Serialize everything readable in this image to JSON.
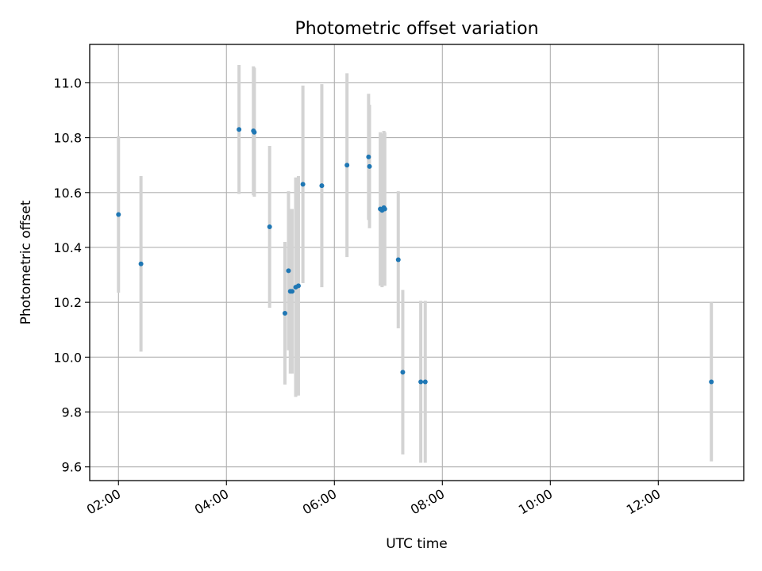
{
  "chart_data": {
    "type": "scatter",
    "title": "Photometric offset variation",
    "xlabel": "UTC time",
    "ylabel": "Photometric offset",
    "x_ticks": [
      "02:00",
      "04:00",
      "06:00",
      "08:00",
      "10:00",
      "12:00"
    ],
    "y_ticks": [
      "9.6",
      "9.8",
      "10.0",
      "10.2",
      "10.4",
      "10.6",
      "10.8",
      "11.0"
    ],
    "xlim": [
      "01:28",
      "13:35"
    ],
    "ylim": [
      9.55,
      11.14
    ],
    "grid": true,
    "point_color": "#1f77b4",
    "errorbar_color": "#d3d3d3",
    "points": [
      {
        "time": "02:00",
        "value": 10.52,
        "error": 0.285
      },
      {
        "time": "02:25",
        "value": 10.34,
        "error": 0.32
      },
      {
        "time": "04:14",
        "value": 10.83,
        "error": 0.235
      },
      {
        "time": "04:30",
        "value": 10.825,
        "error": 0.235
      },
      {
        "time": "04:31",
        "value": 10.82,
        "error": 0.235
      },
      {
        "time": "04:48",
        "value": 10.475,
        "error": 0.295
      },
      {
        "time": "05:05",
        "value": 10.16,
        "error": 0.26
      },
      {
        "time": "05:09",
        "value": 10.315,
        "error": 0.29
      },
      {
        "time": "05:11",
        "value": 10.24,
        "error": 0.3
      },
      {
        "time": "05:13",
        "value": 10.24,
        "error": 0.3
      },
      {
        "time": "05:17",
        "value": 10.255,
        "error": 0.4
      },
      {
        "time": "05:20",
        "value": 10.26,
        "error": 0.4
      },
      {
        "time": "05:25",
        "value": 10.63,
        "error": 0.36
      },
      {
        "time": "05:46",
        "value": 10.625,
        "error": 0.37
      },
      {
        "time": "06:14",
        "value": 10.7,
        "error": 0.335
      },
      {
        "time": "06:38",
        "value": 10.73,
        "error": 0.23
      },
      {
        "time": "06:39",
        "value": 10.695,
        "error": 0.225
      },
      {
        "time": "06:51",
        "value": 10.54,
        "error": 0.28
      },
      {
        "time": "06:53",
        "value": 10.535,
        "error": 0.28
      },
      {
        "time": "06:55",
        "value": 10.545,
        "error": 0.28
      },
      {
        "time": "06:56",
        "value": 10.54,
        "error": 0.28
      },
      {
        "time": "07:11",
        "value": 10.355,
        "error": 0.25
      },
      {
        "time": "07:16",
        "value": 9.945,
        "error": 0.3
      },
      {
        "time": "07:36",
        "value": 9.91,
        "error": 0.295
      },
      {
        "time": "07:41",
        "value": 9.91,
        "error": 0.295
      },
      {
        "time": "12:59",
        "value": 9.91,
        "error": 0.29
      }
    ]
  }
}
